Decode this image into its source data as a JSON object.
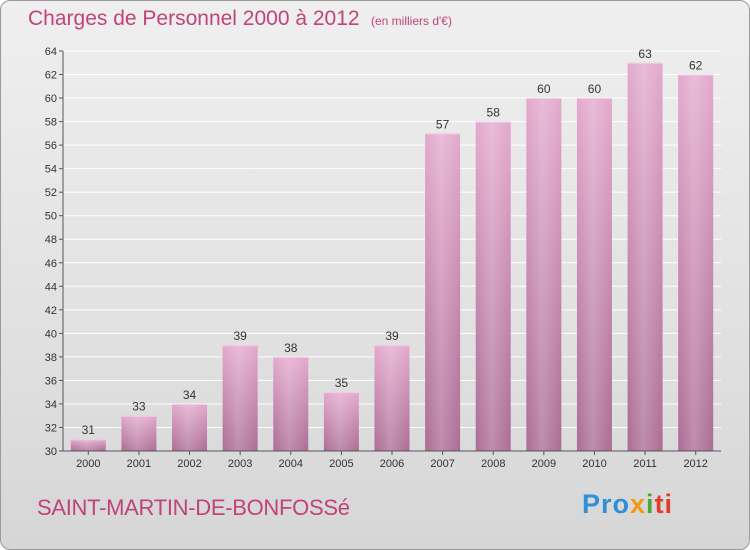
{
  "title": "Charges de Personnel 2000 à 2012",
  "unit_note": "(en milliers d'€)",
  "place_name": "SAINT-MARTIN-DE-BONFOSSé",
  "brand": {
    "part1": "Pro",
    "part2": "x",
    "part3": "i",
    "part4": "ti"
  },
  "colors": {
    "title": "#c0437a",
    "bar_top": "#e3a9cd",
    "bar_bottom": "#ab6c95",
    "gridline": "#ffffff"
  },
  "chart_data": {
    "type": "bar",
    "title": "Charges de Personnel 2000 à 2012",
    "subtitle": "(en milliers d'€)",
    "categories": [
      "2000",
      "2001",
      "2002",
      "2003",
      "2004",
      "2005",
      "2006",
      "2007",
      "2008",
      "2009",
      "2010",
      "2011",
      "2012"
    ],
    "values": [
      31,
      33,
      34,
      39,
      38,
      35,
      39,
      57,
      58,
      60,
      60,
      63,
      62
    ],
    "ylim": [
      30,
      64
    ],
    "yticks": [
      30,
      32,
      34,
      36,
      38,
      40,
      42,
      44,
      46,
      48,
      50,
      52,
      54,
      56,
      58,
      60,
      62,
      64
    ],
    "grid": true,
    "legend": "none"
  }
}
